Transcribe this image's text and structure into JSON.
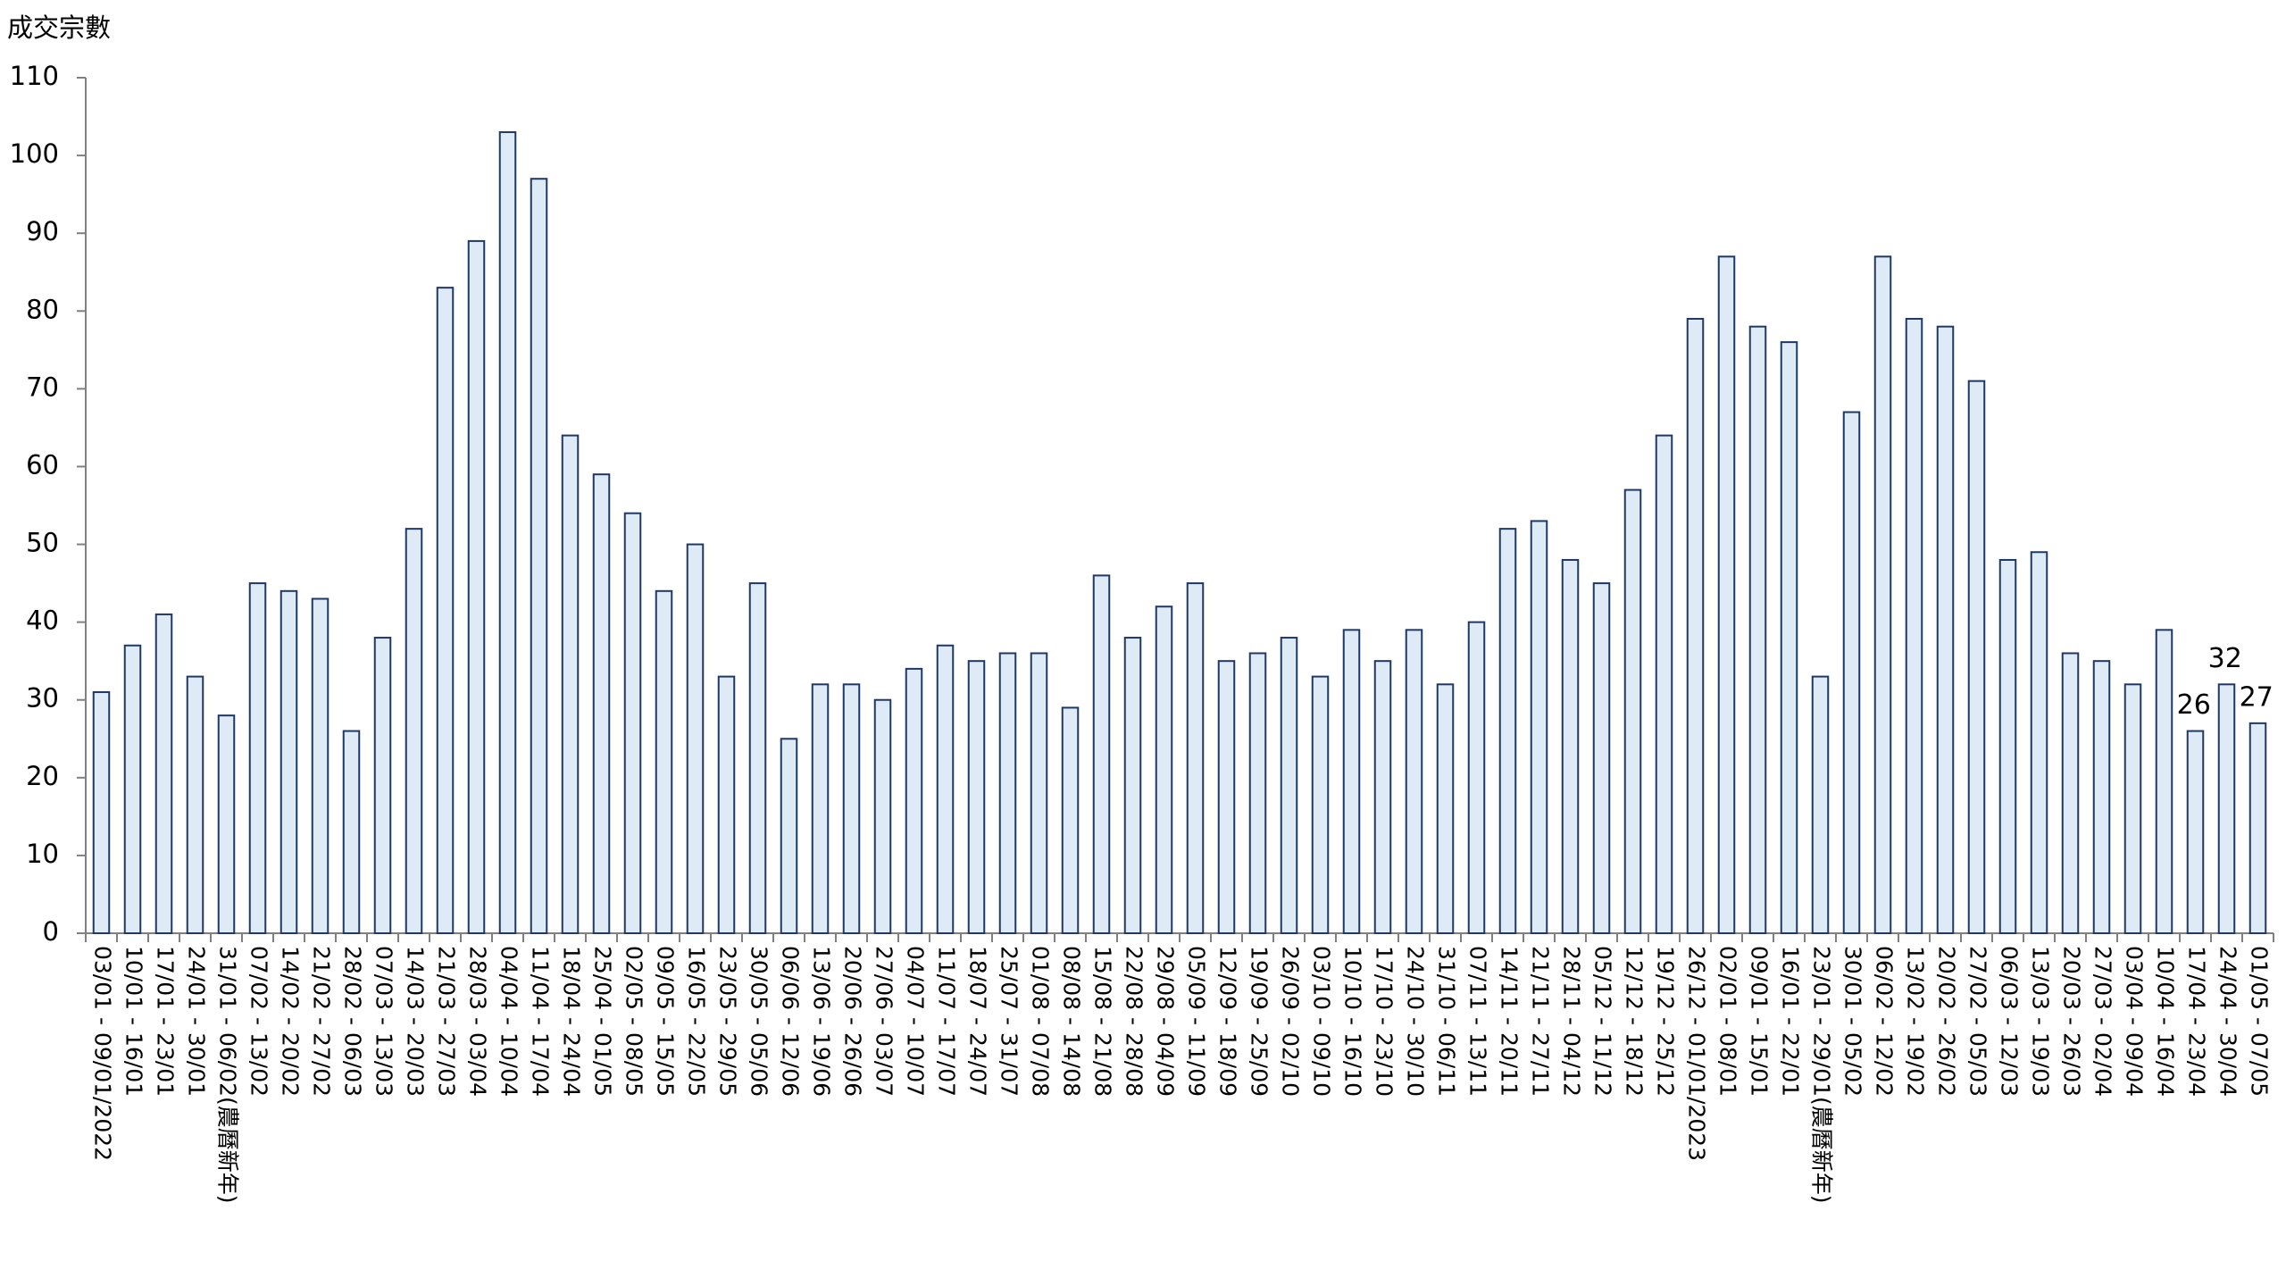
{
  "chart_data": {
    "type": "bar",
    "y_label": "成交宗數",
    "categories": [
      "03/01 - 09/01/2022",
      "10/01 - 16/01",
      "17/01 - 23/01",
      "24/01 - 30/01",
      "31/01 - 06/02(農曆新年)",
      "07/02 - 13/02",
      "14/02 - 20/02",
      "21/02 - 27/02",
      "28/02 - 06/03",
      "07/03 - 13/03",
      "14/03 - 20/03",
      "21/03 - 27/03",
      "28/03 - 03/04",
      "04/04 - 10/04",
      "11/04 - 17/04",
      "18/04 - 24/04",
      "25/04 - 01/05",
      "02/05 - 08/05",
      "09/05 - 15/05",
      "16/05 - 22/05",
      "23/05 - 29/05",
      "30/05 - 05/06",
      "06/06 - 12/06",
      "13/06 - 19/06",
      "20/06 - 26/06",
      "27/06 - 03/07",
      "04/07 - 10/07",
      "11/07 - 17/07",
      "18/07 - 24/07",
      "25/07 - 31/07",
      "01/08 - 07/08",
      "08/08 - 14/08",
      "15/08 - 21/08",
      "22/08 - 28/08",
      "29/08 - 04/09",
      "05/09 - 11/09",
      "12/09 - 18/09",
      "19/09 - 25/09",
      "26/09 - 02/10",
      "03/10 - 09/10",
      "10/10 - 16/10",
      "17/10 - 23/10",
      "24/10 - 30/10",
      "31/10 - 06/11",
      "07/11 - 13/11",
      "14/11 - 20/11",
      "21/11 - 27/11",
      "28/11 - 04/12",
      "05/12 - 11/12",
      "12/12 - 18/12",
      "19/12 - 25/12",
      "26/12 - 01/01/2023",
      "02/01 - 08/01",
      "09/01 - 15/01",
      "16/01 - 22/01",
      "23/01 - 29/01(農曆新年)",
      "30/01 - 05/02",
      "06/02 - 12/02",
      "13/02 - 19/02",
      "20/02 - 26/02",
      "27/02 - 05/03",
      "06/03 - 12/03",
      "13/03 - 19/03",
      "20/03 - 26/03",
      "27/03 - 02/04",
      "03/04 - 09/04",
      "10/04 - 16/04",
      "17/04 - 23/04",
      "24/04 - 30/04",
      "01/05 - 07/05"
    ],
    "values": [
      31,
      37,
      41,
      33,
      28,
      45,
      44,
      43,
      26,
      38,
      52,
      83,
      89,
      103,
      97,
      64,
      59,
      54,
      44,
      50,
      33,
      45,
      25,
      32,
      32,
      30,
      34,
      37,
      35,
      36,
      36,
      29,
      46,
      38,
      42,
      45,
      35,
      36,
      38,
      33,
      39,
      35,
      39,
      32,
      40,
      52,
      53,
      48,
      45,
      57,
      64,
      79,
      87,
      78,
      76,
      33,
      67,
      87,
      79,
      78,
      71,
      48,
      49,
      36,
      35,
      32,
      39,
      26,
      32,
      27
    ],
    "value_labels": [
      null,
      null,
      null,
      null,
      null,
      null,
      null,
      null,
      null,
      null,
      null,
      null,
      null,
      null,
      null,
      null,
      null,
      null,
      null,
      null,
      null,
      null,
      null,
      null,
      null,
      null,
      null,
      null,
      null,
      null,
      null,
      null,
      null,
      null,
      null,
      null,
      null,
      null,
      null,
      null,
      null,
      null,
      null,
      null,
      null,
      null,
      null,
      null,
      null,
      null,
      null,
      null,
      null,
      null,
      null,
      null,
      null,
      null,
      null,
      null,
      null,
      null,
      null,
      null,
      null,
      null,
      null,
      "26",
      "32",
      "27"
    ],
    "color": "#deebf7",
    "edge_color": "#1f3864",
    "ylim": [
      0,
      110
    ],
    "yticks": [
      0,
      10,
      20,
      30,
      40,
      50,
      60,
      70,
      80,
      90,
      100,
      110
    ],
    "grid": false
  }
}
